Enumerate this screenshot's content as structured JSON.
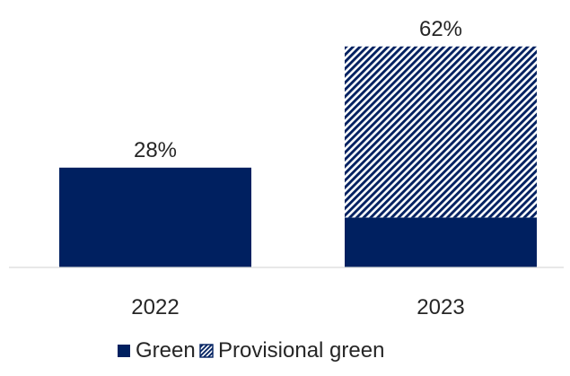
{
  "chart_data": {
    "type": "bar",
    "stacked": true,
    "title": "",
    "xlabel": "",
    "ylabel": "",
    "categories": [
      "2022",
      "2023"
    ],
    "series": [
      {
        "name": "Green",
        "values": [
          28,
          14
        ],
        "color": "#002060",
        "pattern": "solid"
      },
      {
        "name": "Provisional green",
        "values": [
          0,
          48
        ],
        "color": "#002060",
        "pattern": "diagonal-hatch"
      }
    ],
    "totals": [
      28,
      62
    ],
    "total_labels": [
      "28%",
      "62%"
    ],
    "ylim": [
      0,
      70
    ],
    "grid": false,
    "legend": {
      "position": "bottom"
    }
  }
}
